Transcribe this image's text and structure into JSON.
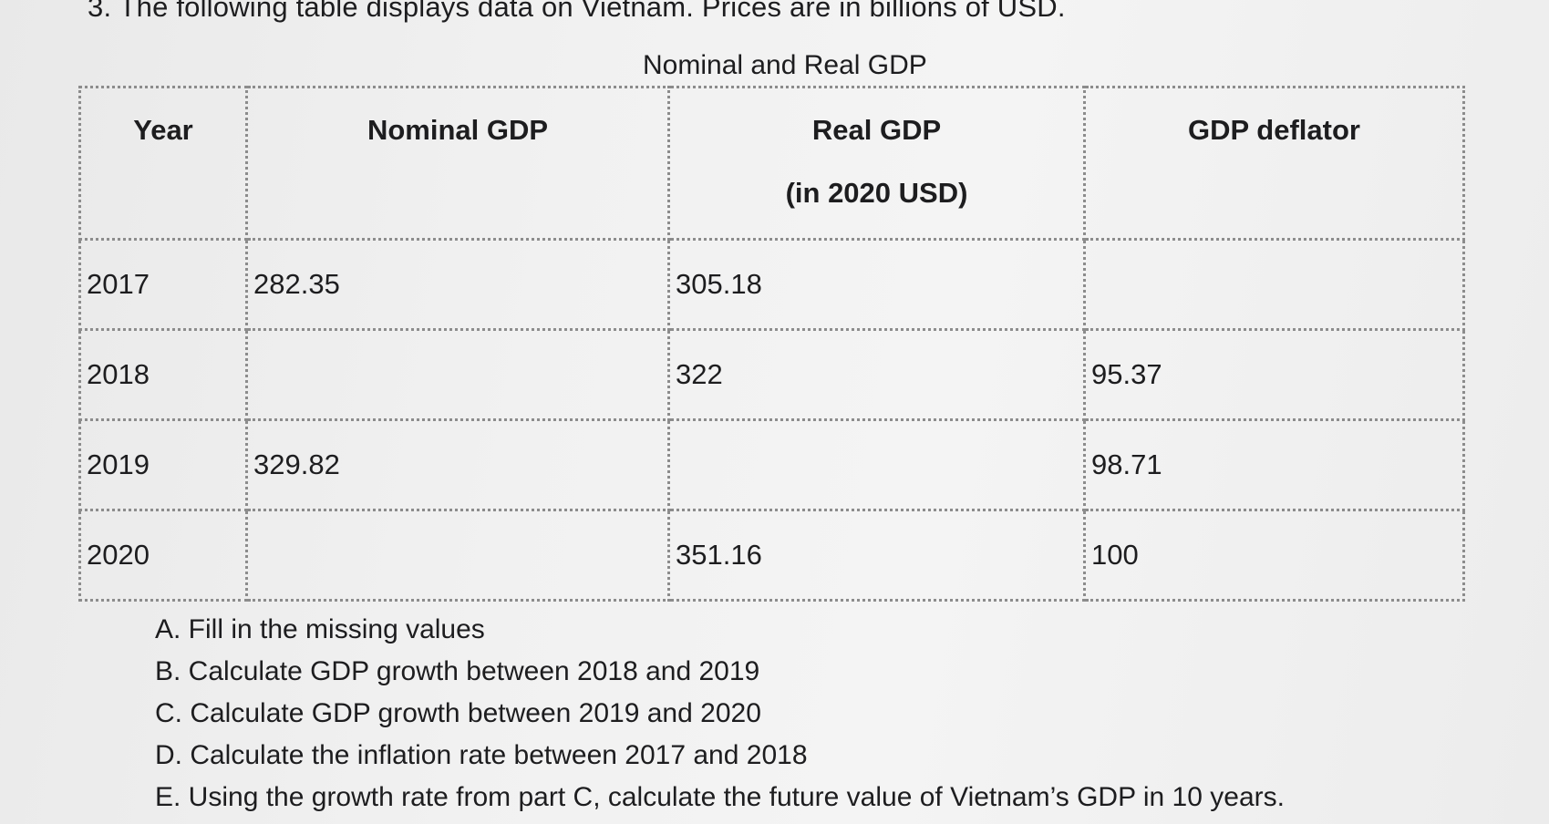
{
  "intro_text": "3. The following table displays data on Vietnam. Prices are in billions of USD.",
  "table": {
    "title": "Nominal and Real GDP",
    "headers": [
      {
        "label": "Year",
        "sub": ""
      },
      {
        "label": "Nominal GDP",
        "sub": ""
      },
      {
        "label": "Real GDP",
        "sub": "(in 2020 USD)"
      },
      {
        "label": "GDP deflator",
        "sub": ""
      }
    ],
    "rows": [
      [
        "2017",
        "282.35",
        "305.18",
        ""
      ],
      [
        "2018",
        "",
        "322",
        "95.37"
      ],
      [
        "2019",
        "329.82",
        "",
        "98.71"
      ],
      [
        "2020",
        "",
        "351.16",
        "100"
      ]
    ]
  },
  "questions": [
    "A. Fill in the missing values",
    "B. Calculate GDP growth between 2018 and 2019",
    "C. Calculate GDP growth between 2019 and 2020",
    "D. Calculate the inflation rate between 2017 and 2018",
    "E. Using the growth rate from part C, calculate the future value of Vietnam’s GDP in 10 years."
  ]
}
